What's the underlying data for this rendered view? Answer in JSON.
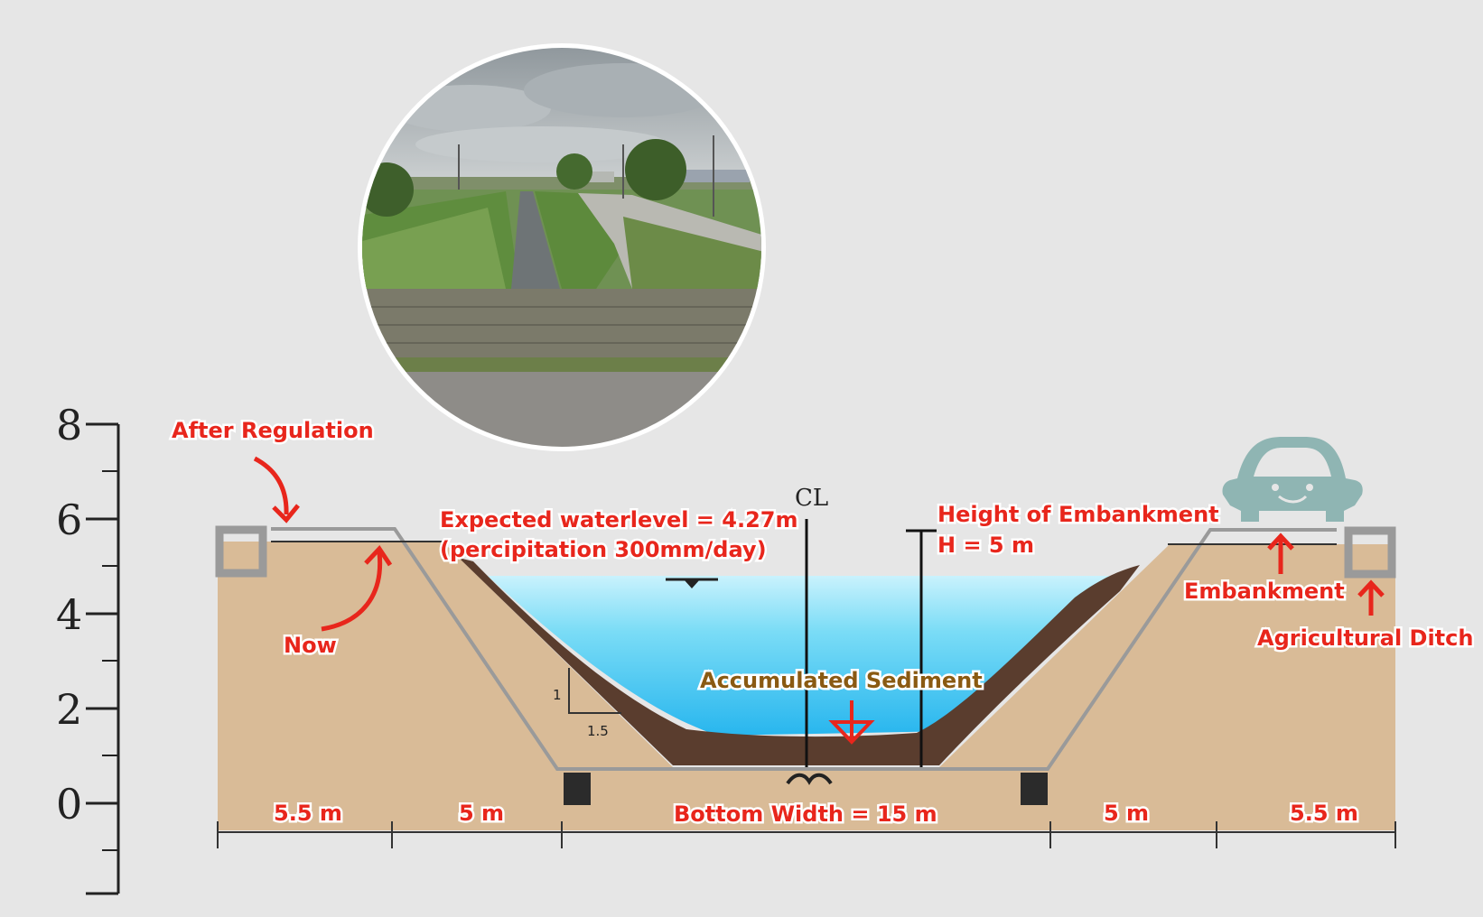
{
  "axis": {
    "ticks": [
      "8",
      "6",
      "4",
      "2",
      "0"
    ]
  },
  "labels": {
    "after_regulation": "After Regulation",
    "now": "Now",
    "expected_waterlevel": "Expected waterlevel = 4.27m",
    "precipitation": "(percipitation 300mm/day)",
    "centerline": "CL",
    "height_of_embankment": "Height of Embankment",
    "height_value": "H = 5 m",
    "embankment": "Embankment",
    "agricultural_ditch": "Agricultural Ditch",
    "accumulated_sediment": "Accumulated Sediment",
    "slope_rise": "1",
    "slope_run": "1.5"
  },
  "dimensions": {
    "left_crest": "5.5 m",
    "left_slope": "5 m",
    "bottom_width": "Bottom Width = 15 m",
    "right_slope": "5 m",
    "right_crest": "5.5 m"
  },
  "photo": {
    "subject": "river-channel-photo"
  },
  "colors": {
    "soil": "#d9bb97",
    "water": "#5fd0f2",
    "sediment": "#5a3d2e",
    "annotation_red": "#e8261c",
    "annotation_brown": "#8a5a12",
    "car": "#8fb5b3"
  }
}
